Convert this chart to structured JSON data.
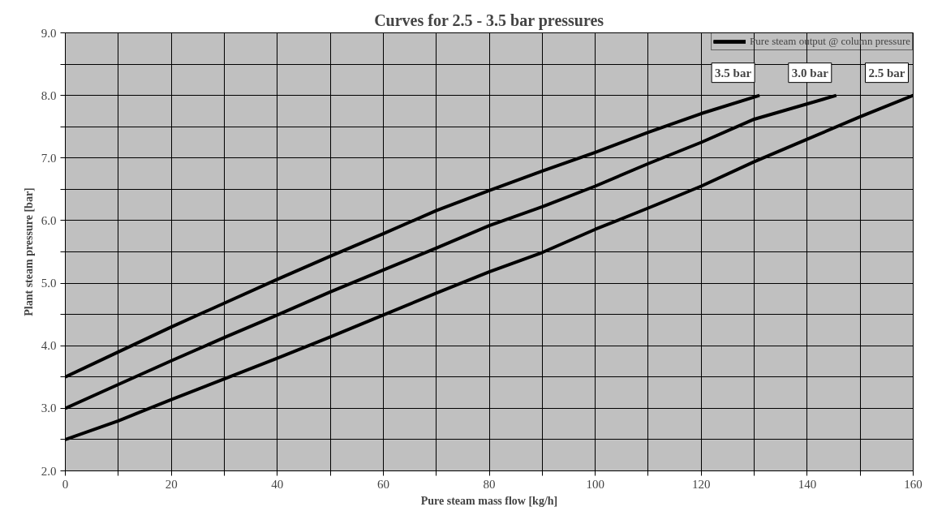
{
  "chart_data": {
    "type": "line",
    "title": "Curves for 2.5 - 3.5 bar pressures",
    "xlabel": "Pure steam mass flow [kg/h]",
    "ylabel": "Plant steam pressure [bar]",
    "legend_title": "Pure steam output @ column pressure",
    "legend": "top right",
    "series": [
      {
        "name": "3.5 bar",
        "color": "#000000",
        "x": [
          0,
          10,
          20,
          30,
          40,
          50,
          60,
          70,
          80,
          90,
          100,
          110,
          120,
          131
        ],
        "values": [
          3.5,
          3.9,
          4.3,
          4.68,
          5.06,
          5.43,
          5.79,
          6.16,
          6.48,
          6.79,
          7.09,
          7.41,
          7.71,
          8.0
        ]
      },
      {
        "name": "3.0 bar",
        "color": "#000000",
        "x": [
          0,
          10,
          20,
          30,
          40,
          50,
          60,
          70,
          80,
          90,
          100,
          110,
          120,
          130,
          145.5
        ],
        "values": [
          3.0,
          3.38,
          3.76,
          4.13,
          4.49,
          4.86,
          5.21,
          5.56,
          5.92,
          6.22,
          6.55,
          6.91,
          7.25,
          7.62,
          8.0
        ]
      },
      {
        "name": "2.5 bar",
        "color": "#000000",
        "x": [
          0,
          10,
          20,
          30,
          40,
          50,
          60,
          70,
          80,
          90,
          100,
          110,
          120,
          130,
          140,
          150,
          160
        ],
        "values": [
          2.5,
          2.8,
          3.14,
          3.47,
          3.8,
          4.14,
          4.49,
          4.84,
          5.18,
          5.49,
          5.86,
          6.2,
          6.55,
          6.94,
          7.3,
          7.66,
          8.0
        ]
      }
    ],
    "xlim": [
      0,
      160
    ],
    "ylim": [
      2.0,
      9.0
    ],
    "xticks": [
      0,
      {
        "value": 10,
        "label": null
      },
      20,
      {
        "value": 30,
        "label": null
      },
      40,
      {
        "value": 50,
        "label": null
      },
      60,
      {
        "value": 70,
        "label": null
      },
      80,
      {
        "value": 90,
        "label": null
      },
      100,
      {
        "value": 110,
        "label": null
      },
      120,
      {
        "value": 130,
        "label": null
      },
      140,
      {
        "value": 150,
        "label": null
      },
      160
    ],
    "yticks": [
      {
        "value": 2.0,
        "label": "2.0"
      },
      {
        "value": 2.5,
        "label": null
      },
      {
        "value": 3.0,
        "label": "3.0"
      },
      {
        "value": 3.5,
        "label": null
      },
      {
        "value": 4.0,
        "label": "4.0"
      },
      {
        "value": 4.5,
        "label": null
      },
      {
        "value": 5.0,
        "label": "5.0"
      },
      {
        "value": 5.5,
        "label": null
      },
      {
        "value": 6.0,
        "label": "6.0"
      },
      {
        "value": 6.5,
        "label": null
      },
      {
        "value": 7.0,
        "label": "7.0"
      },
      {
        "value": 7.5,
        "label": null
      },
      {
        "value": 8.0,
        "label": "8.0"
      },
      {
        "value": 8.5,
        "label": null
      },
      {
        "value": 9.0,
        "label": "9.0"
      }
    ],
    "grid": true,
    "marker": "none",
    "line_style": "solid"
  }
}
